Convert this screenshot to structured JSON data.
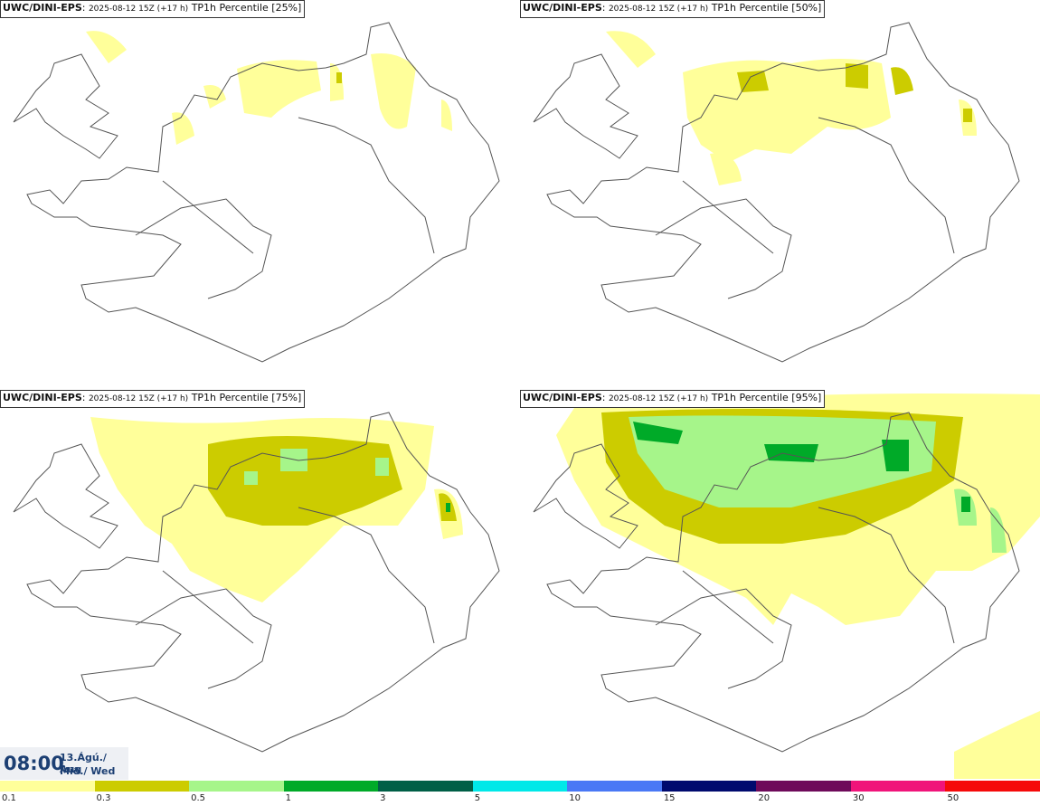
{
  "panels": [
    {
      "model": "UWC/DINI-EPS",
      "run": "2025-08-12 15Z (+17 h)",
      "product": "TP1h Percentile [25%]"
    },
    {
      "model": "UWC/DINI-EPS",
      "run": "2025-08-12 15Z (+17 h)",
      "product": "TP1h Percentile [50%]"
    },
    {
      "model": "UWC/DINI-EPS",
      "run": "2025-08-12 15Z (+17 h)",
      "product": "TP1h Percentile [75%]"
    },
    {
      "model": "UWC/DINI-EPS",
      "run": "2025-08-12 15Z (+17 h)",
      "product": "TP1h Percentile [95%]"
    }
  ],
  "valid_time": {
    "clock": "08:00",
    "date_line1": "13.Ágú./ Aug",
    "date_line2": "Mið./ Wed"
  },
  "legend": {
    "colors": [
      "#ffff9a",
      "#cccc00",
      "#a6f58a",
      "#00aa28",
      "#005f46",
      "#00e8e8",
      "#4a78f5",
      "#000a6e",
      "#6e0a5a",
      "#f0147a",
      "#f50a0a"
    ],
    "ticks": [
      "0.1",
      "0.3",
      "0.5",
      "1",
      "3",
      "5",
      "10",
      "15",
      "20",
      "30",
      "50"
    ]
  },
  "map_colors": {
    "coast": "#555555",
    "light": "#ffff9a",
    "olive": "#cccc00",
    "lightgreen": "#a6f58a",
    "green": "#00aa28"
  }
}
